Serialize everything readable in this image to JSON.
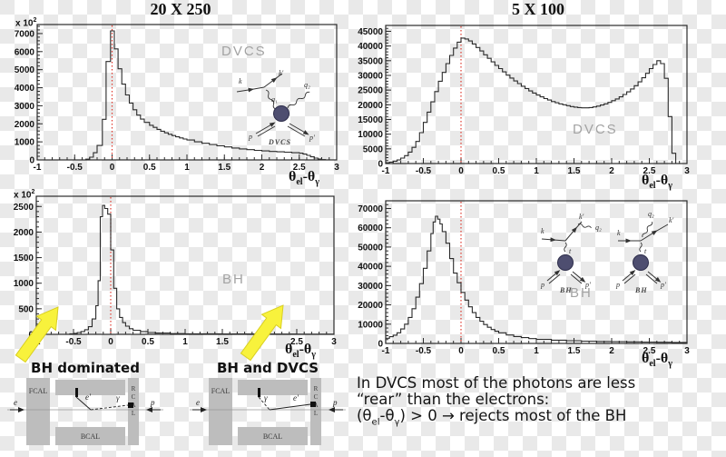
{
  "axis_label_parts": {
    "p1": "θ",
    "s1": "el",
    "p2": "-θ",
    "s2": "γ"
  },
  "chart_data": [
    {
      "type": "bar",
      "title": "20 X 250",
      "process": "DVCS",
      "watermark": "DVCS",
      "xlabel": "θel-θγ",
      "ylabel": "",
      "y_multiplier": "x 10",
      "y_multiplier_exp": "2",
      "xlim": [
        -1,
        3
      ],
      "ylim": [
        0,
        7500
      ],
      "x_ticks": [
        -1,
        -0.5,
        0,
        0.5,
        1,
        1.5,
        2,
        2.5,
        3
      ],
      "x_minor": 0.1,
      "y_ticks": [
        0,
        1000,
        2000,
        3000,
        4000,
        5000,
        6000,
        7000
      ],
      "y_minor": 200,
      "marker_x": 0,
      "marker_color": "#e03a2f",
      "line_color": "#2a2a2a",
      "grid": false,
      "x_end": 2.85,
      "steps": [
        [
          -1,
          0
        ],
        [
          -0.35,
          40
        ],
        [
          -0.3,
          150
        ],
        [
          -0.25,
          400
        ],
        [
          -0.2,
          800
        ],
        [
          -0.13,
          2250
        ],
        [
          -0.08,
          5450
        ],
        [
          -0.02,
          7150
        ],
        [
          0.03,
          6150
        ],
        [
          0.08,
          5050
        ],
        [
          0.13,
          4200
        ],
        [
          0.18,
          3600
        ],
        [
          0.23,
          3150
        ],
        [
          0.28,
          2780
        ],
        [
          0.33,
          2480
        ],
        [
          0.38,
          2260
        ],
        [
          0.43,
          2080
        ],
        [
          0.5,
          1920
        ],
        [
          0.55,
          1800
        ],
        [
          0.6,
          1690
        ],
        [
          0.65,
          1590
        ],
        [
          0.7,
          1500
        ],
        [
          0.75,
          1420
        ],
        [
          0.8,
          1350
        ],
        [
          0.85,
          1280
        ],
        [
          0.9,
          1220
        ],
        [
          0.95,
          1160
        ],
        [
          1,
          1100
        ],
        [
          1.1,
          1000
        ],
        [
          1.2,
          920
        ],
        [
          1.3,
          850
        ],
        [
          1.4,
          780
        ],
        [
          1.5,
          720
        ],
        [
          1.6,
          660
        ],
        [
          1.7,
          610
        ],
        [
          1.8,
          570
        ],
        [
          1.9,
          530
        ],
        [
          2,
          500
        ],
        [
          2.1,
          470
        ],
        [
          2.2,
          450
        ],
        [
          2.3,
          430
        ],
        [
          2.4,
          400
        ],
        [
          2.5,
          370
        ],
        [
          2.55,
          320
        ],
        [
          2.6,
          250
        ],
        [
          2.65,
          170
        ],
        [
          2.7,
          100
        ],
        [
          2.75,
          45
        ],
        [
          2.8,
          15
        ]
      ]
    },
    {
      "type": "bar",
      "title": "5 X 100",
      "process": "DVCS",
      "watermark": "DVCS",
      "xlabel": "θel-θγ",
      "ylabel": "",
      "xlim": [
        -1,
        3
      ],
      "ylim": [
        0,
        47000
      ],
      "x_ticks": [
        -1,
        -0.5,
        0,
        0.5,
        1,
        1.5,
        2,
        2.5,
        3
      ],
      "x_minor": 0.1,
      "y_ticks": [
        0,
        5000,
        10000,
        15000,
        20000,
        25000,
        30000,
        35000,
        40000,
        45000
      ],
      "y_minor": 1000,
      "marker_x": 0,
      "marker_color": "#e03a2f",
      "line_color": "#2a2a2a",
      "grid": false,
      "x_end": 2.85,
      "steps": [
        [
          -1,
          300
        ],
        [
          -0.95,
          500
        ],
        [
          -0.9,
          800
        ],
        [
          -0.85,
          1250
        ],
        [
          -0.8,
          1850
        ],
        [
          -0.75,
          2700
        ],
        [
          -0.7,
          3900
        ],
        [
          -0.65,
          5500
        ],
        [
          -0.6,
          7500
        ],
        [
          -0.55,
          10500
        ],
        [
          -0.5,
          14000
        ],
        [
          -0.45,
          17500
        ],
        [
          -0.4,
          21000
        ],
        [
          -0.35,
          24500
        ],
        [
          -0.3,
          28000
        ],
        [
          -0.25,
          31000
        ],
        [
          -0.2,
          34000
        ],
        [
          -0.15,
          36800
        ],
        [
          -0.1,
          39300
        ],
        [
          -0.05,
          41300
        ],
        [
          0,
          42700
        ],
        [
          0.05,
          42400
        ],
        [
          0.1,
          41700
        ],
        [
          0.15,
          40700
        ],
        [
          0.2,
          39500
        ],
        [
          0.25,
          38300
        ],
        [
          0.3,
          37000
        ],
        [
          0.35,
          35800
        ],
        [
          0.4,
          34600
        ],
        [
          0.45,
          33400
        ],
        [
          0.5,
          32300
        ],
        [
          0.55,
          31200
        ],
        [
          0.6,
          30100
        ],
        [
          0.65,
          29100
        ],
        [
          0.7,
          28100
        ],
        [
          0.75,
          27200
        ],
        [
          0.8,
          26300
        ],
        [
          0.85,
          25500
        ],
        [
          0.9,
          24700
        ],
        [
          0.95,
          24000
        ],
        [
          1,
          23300
        ],
        [
          1.05,
          22700
        ],
        [
          1.1,
          22100
        ],
        [
          1.15,
          21600
        ],
        [
          1.2,
          21100
        ],
        [
          1.25,
          20700
        ],
        [
          1.3,
          20300
        ],
        [
          1.35,
          20000
        ],
        [
          1.4,
          19700
        ],
        [
          1.45,
          19400
        ],
        [
          1.5,
          19200
        ],
        [
          1.55,
          19050
        ],
        [
          1.6,
          18950
        ],
        [
          1.7,
          19050
        ],
        [
          1.75,
          19250
        ],
        [
          1.8,
          19550
        ],
        [
          1.85,
          19900
        ],
        [
          1.9,
          20300
        ],
        [
          1.95,
          20800
        ],
        [
          2,
          21400
        ],
        [
          2.05,
          22000
        ],
        [
          2.1,
          22700
        ],
        [
          2.15,
          23500
        ],
        [
          2.2,
          24400
        ],
        [
          2.25,
          25400
        ],
        [
          2.3,
          26500
        ],
        [
          2.35,
          27800
        ],
        [
          2.4,
          29200
        ],
        [
          2.45,
          30700
        ],
        [
          2.5,
          32300
        ],
        [
          2.55,
          33700
        ],
        [
          2.6,
          35000
        ],
        [
          2.65,
          34000
        ],
        [
          2.7,
          29000
        ],
        [
          2.75,
          16000
        ],
        [
          2.8,
          3500
        ]
      ]
    },
    {
      "type": "bar",
      "title": "",
      "process": "BH",
      "watermark": "BH",
      "xlabel": "θel-θγ",
      "ylabel": "",
      "y_multiplier": "x 10",
      "y_multiplier_exp": "2",
      "xlim": [
        -1,
        3
      ],
      "ylim": [
        0,
        2700
      ],
      "x_ticks": [
        -1,
        -0.5,
        0,
        0.5,
        1,
        1.5,
        2,
        2.5,
        3
      ],
      "x_minor": 0.1,
      "y_ticks": [
        0,
        500,
        1000,
        1500,
        2000,
        2500
      ],
      "y_minor": 100,
      "marker_x": 0,
      "marker_color": "#e03a2f",
      "line_color": "#2a2a2a",
      "grid": false,
      "x_end": 3,
      "steps": [
        [
          -1,
          0
        ],
        [
          -0.55,
          10
        ],
        [
          -0.5,
          20
        ],
        [
          -0.45,
          35
        ],
        [
          -0.4,
          55
        ],
        [
          -0.35,
          90
        ],
        [
          -0.3,
          150
        ],
        [
          -0.25,
          300
        ],
        [
          -0.2,
          560
        ],
        [
          -0.17,
          1050
        ],
        [
          -0.14,
          2300
        ],
        [
          -0.11,
          2520
        ],
        [
          -0.08,
          2460
        ],
        [
          -0.04,
          2350
        ],
        [
          0,
          1650
        ],
        [
          0.04,
          900
        ],
        [
          0.08,
          500
        ],
        [
          0.12,
          330
        ],
        [
          0.16,
          230
        ],
        [
          0.2,
          160
        ],
        [
          0.25,
          110
        ],
        [
          0.3,
          80
        ],
        [
          0.4,
          55
        ],
        [
          0.5,
          35
        ],
        [
          0.6,
          25
        ],
        [
          0.8,
          15
        ],
        [
          1,
          10
        ],
        [
          1.5,
          8
        ],
        [
          2,
          5
        ],
        [
          2.5,
          3
        ]
      ]
    },
    {
      "type": "bar",
      "title": "",
      "process": "BH",
      "watermark": "BH",
      "xlabel": "θel-θγ",
      "ylabel": "",
      "xlim": [
        -1,
        3
      ],
      "ylim": [
        0,
        74000
      ],
      "x_ticks": [
        -1,
        -0.5,
        0,
        0.5,
        1,
        1.5,
        2,
        2.5,
        3
      ],
      "x_minor": 0.1,
      "y_ticks": [
        0,
        10000,
        20000,
        30000,
        40000,
        50000,
        60000,
        70000
      ],
      "y_minor": 2000,
      "marker_x": 0,
      "marker_color": "#e03a2f",
      "line_color": "#2a2a2a",
      "grid": false,
      "x_end": 3,
      "steps": [
        [
          -1,
          2700
        ],
        [
          -0.95,
          3500
        ],
        [
          -0.9,
          4300
        ],
        [
          -0.85,
          5500
        ],
        [
          -0.8,
          7500
        ],
        [
          -0.75,
          10000
        ],
        [
          -0.7,
          13500
        ],
        [
          -0.65,
          18000
        ],
        [
          -0.6,
          24000
        ],
        [
          -0.55,
          31000
        ],
        [
          -0.5,
          39000
        ],
        [
          -0.45,
          48000
        ],
        [
          -0.4,
          57000
        ],
        [
          -0.37,
          63000
        ],
        [
          -0.34,
          66000
        ],
        [
          -0.31,
          64500
        ],
        [
          -0.28,
          62000
        ],
        [
          -0.25,
          58000
        ],
        [
          -0.2,
          52000
        ],
        [
          -0.15,
          44000
        ],
        [
          -0.1,
          36500
        ],
        [
          -0.05,
          31500
        ],
        [
          0,
          26500
        ],
        [
          0.05,
          22500
        ],
        [
          0.1,
          19000
        ],
        [
          0.15,
          16000
        ],
        [
          0.2,
          13500
        ],
        [
          0.25,
          11500
        ],
        [
          0.3,
          9800
        ],
        [
          0.35,
          8400
        ],
        [
          0.4,
          7200
        ],
        [
          0.45,
          6300
        ],
        [
          0.5,
          5500
        ],
        [
          0.6,
          4400
        ],
        [
          0.7,
          3600
        ],
        [
          0.8,
          3000
        ],
        [
          0.9,
          2500
        ],
        [
          1,
          2100
        ],
        [
          1.2,
          1700
        ],
        [
          1.4,
          1400
        ],
        [
          1.6,
          1200
        ],
        [
          1.8,
          1000
        ],
        [
          2,
          900
        ],
        [
          2.2,
          800
        ],
        [
          2.4,
          700
        ],
        [
          2.6,
          600
        ],
        [
          2.8,
          500
        ]
      ]
    }
  ],
  "feynman": {
    "dvcs": {
      "k": "k",
      "kp": "k'",
      "q1": "q₁",
      "q2": "q₂",
      "p": "p",
      "pp": "p'",
      "name": "DVCS"
    },
    "bh_left": {
      "k": "k",
      "kp": "k'",
      "q2": "q₂",
      "t": "t",
      "p": "p",
      "pp": "p'",
      "name": "BH"
    },
    "bh_right": {
      "k": "k",
      "kp": "k'",
      "q2": "q₂",
      "t": "t",
      "p": "p",
      "pp": "p'",
      "name": "BH"
    }
  },
  "detectors": [
    {
      "title": "BH dominated",
      "fcal_label": "FCAL",
      "bcal_label": "BCAL",
      "rcal_label": "RCAL",
      "electron_in": "e",
      "proton_in": "p",
      "scattered_electron": "e'",
      "photon": "γ"
    },
    {
      "title": "BH and DVCS",
      "fcal_label": "FCAL",
      "bcal_label": "BCAL",
      "rcal_label": "RCAL",
      "electron_in": "e",
      "proton_in": "p",
      "scattered_electron": "e'",
      "photon": "γ"
    }
  ],
  "caption": {
    "line1": "In DVCS most of the photons are less",
    "line2": "“rear” than the electrons:",
    "line3": {
      "p1": "(θ",
      "s1": "el",
      "p2": "-θ",
      "s2": "γ",
      "p3": ") > 0  → rejects most of the BH"
    }
  }
}
